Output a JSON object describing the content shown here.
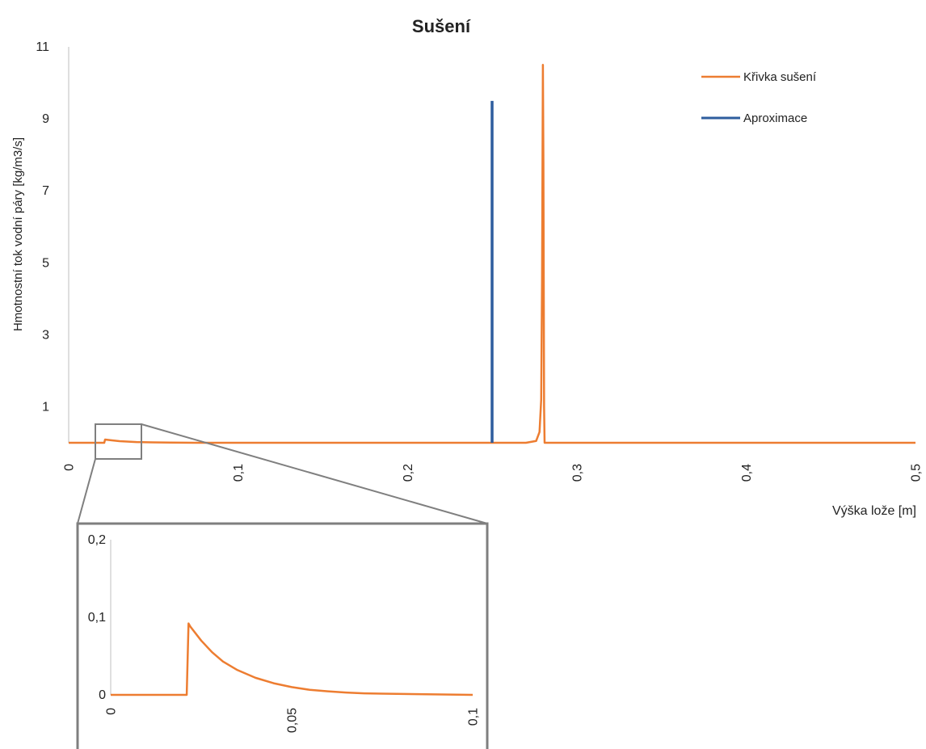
{
  "colors": {
    "curve": "#ED7D31",
    "approx": "#2E5D9E",
    "axis": "#BFBFBF",
    "inset_frame": "#7F7F7F",
    "text": "#222222"
  },
  "chart_data": [
    {
      "type": "line",
      "title": "Sušení",
      "xlabel": "Výška lože [m]",
      "ylabel": "Hmotnostní tok vodní páry [kg/m3/s]",
      "xlim": [
        0,
        0.5
      ],
      "ylim": [
        0,
        11
      ],
      "x_ticks": [
        0,
        0.1,
        0.2,
        0.3,
        0.4,
        0.5
      ],
      "x_tick_labels": [
        "0",
        "0,1",
        "0,2",
        "0,3",
        "0,4",
        "0,5"
      ],
      "y_ticks": [
        1,
        3,
        5,
        7,
        9,
        11
      ],
      "y_tick_labels": [
        "1",
        "3",
        "5",
        "7",
        "9",
        "11"
      ],
      "grid": false,
      "legend_placement": "top-right",
      "series": [
        {
          "name": "Křivka sušení",
          "color": "#ED7D31",
          "x": [
            0,
            0.021,
            0.0215,
            0.025,
            0.03,
            0.04,
            0.05,
            0.06,
            0.075,
            0.1,
            0.2,
            0.27,
            0.276,
            0.278,
            0.279,
            0.2795,
            0.28,
            0.2803,
            0.2807,
            0.281,
            0.5
          ],
          "y": [
            0,
            0,
            0.09,
            0.07,
            0.045,
            0.02,
            0.01,
            0.005,
            0.001,
            0,
            0,
            0,
            0.05,
            0.3,
            1.2,
            4.5,
            10.5,
            7.8,
            1.0,
            0,
            0
          ]
        },
        {
          "name": "Aproximace",
          "color": "#2E5D9E",
          "x": [
            0.25,
            0.25
          ],
          "y": [
            0,
            9.5
          ]
        }
      ]
    },
    {
      "type": "line",
      "title": "",
      "xlabel": "",
      "ylabel": "",
      "xlim": [
        0,
        0.1
      ],
      "ylim": [
        0,
        0.2
      ],
      "x_ticks": [
        0,
        0.05,
        0.1
      ],
      "x_tick_labels": [
        "0",
        "0,05",
        "0,1"
      ],
      "y_ticks": [
        0,
        0.1,
        0.2
      ],
      "y_tick_labels": [
        "0",
        "0,1",
        "0,2"
      ],
      "grid": false,
      "series": [
        {
          "color": "#ED7D31",
          "x": [
            0,
            0.021,
            0.0215,
            0.022,
            0.025,
            0.028,
            0.031,
            0.035,
            0.04,
            0.045,
            0.05,
            0.055,
            0.06,
            0.065,
            0.07,
            0.075,
            0.1
          ],
          "y": [
            0,
            0,
            0.092,
            0.088,
            0.07,
            0.055,
            0.043,
            0.032,
            0.022,
            0.015,
            0.01,
            0.0065,
            0.0045,
            0.003,
            0.002,
            0.0015,
            0
          ]
        }
      ]
    }
  ]
}
